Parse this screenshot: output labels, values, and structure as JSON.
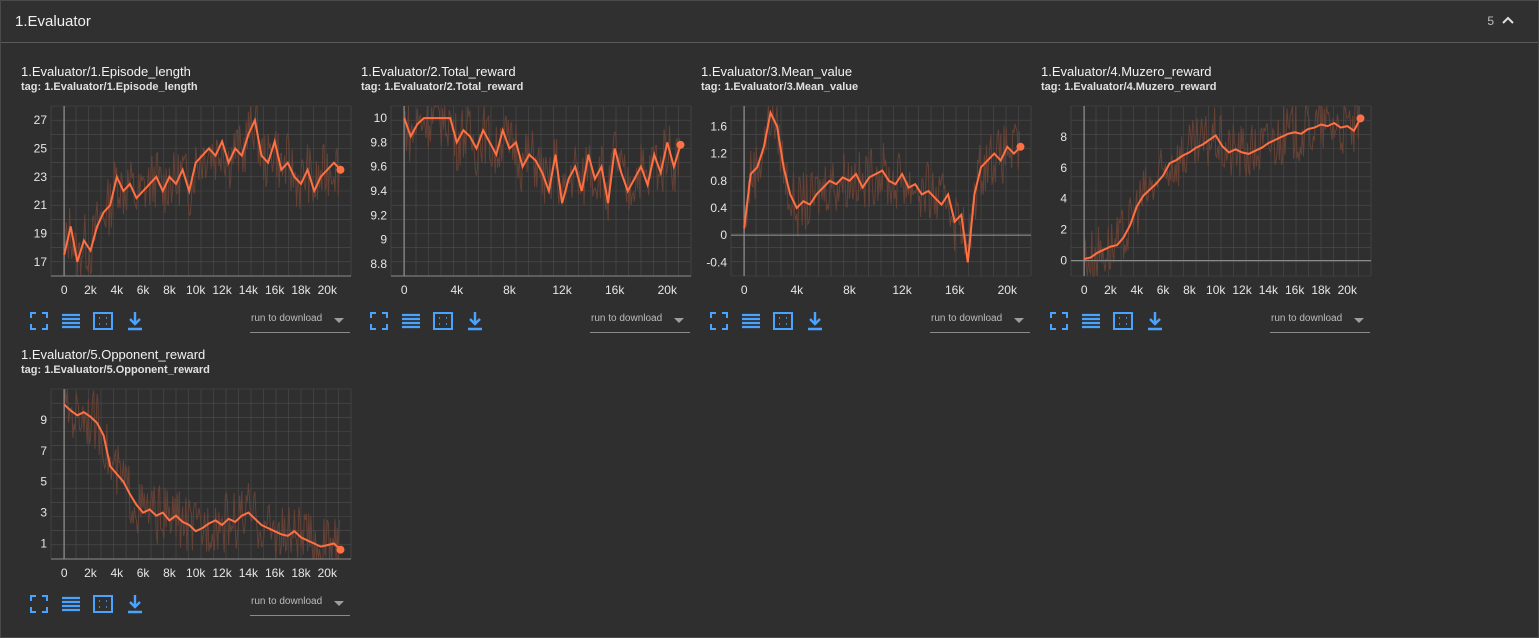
{
  "panel": {
    "title": "1.Evaluator",
    "count": "5",
    "collapse_icon": "chevron-up-icon"
  },
  "colors": {
    "background": "#2f2f2f",
    "grid": "#4d4d4d",
    "axis": "#8c8c8c",
    "line": "#ff7043",
    "raw": "#6e4436",
    "band": "#5c3a30",
    "icon": "#4aa3ff"
  },
  "toolbar": {
    "icons": [
      "fullscreen-icon",
      "toggle-log-scale-icon",
      "fit-domain-icon",
      "download-icon"
    ],
    "run_to_download": "run to download"
  },
  "cards": [
    {
      "title": "1.Evaluator/1.Episode_length",
      "tag": "tag: 1.Evaluator/1.Episode_length"
    },
    {
      "title": "1.Evaluator/2.Total_reward",
      "tag": "tag: 1.Evaluator/2.Total_reward"
    },
    {
      "title": "1.Evaluator/3.Mean_value",
      "tag": "tag: 1.Evaluator/3.Mean_value"
    },
    {
      "title": "1.Evaluator/4.Muzero_reward",
      "tag": "tag: 1.Evaluator/4.Muzero_reward"
    },
    {
      "title": "1.Evaluator/5.Opponent_reward",
      "tag": "tag: 1.Evaluator/5.Opponent_reward"
    }
  ],
  "chart_data": [
    {
      "type": "line",
      "series": [
        {
          "x": [
            0,
            500,
            1000,
            1500,
            2000,
            2500,
            3000,
            3500,
            4000,
            4500,
            5000,
            5500,
            6000,
            6500,
            7000,
            7500,
            8000,
            8500,
            9000,
            9500,
            10000,
            10500,
            11000,
            11500,
            12000,
            12500,
            13000,
            13500,
            14000,
            14500,
            15000,
            15500,
            16000,
            16500,
            17000,
            17500,
            18000,
            18500,
            19000,
            19500,
            20000,
            20500,
            21000
          ],
          "y": [
            17.5,
            19.5,
            17.0,
            18.5,
            17.8,
            19.5,
            20.5,
            21.0,
            23.0,
            22.0,
            22.5,
            21.5,
            22.0,
            22.5,
            23.0,
            22.0,
            23.0,
            22.5,
            23.5,
            22.0,
            24.0,
            24.5,
            25.0,
            24.5,
            25.5,
            24.0,
            25.0,
            24.5,
            26.0,
            27.0,
            24.5,
            24.0,
            25.5,
            23.5,
            24.0,
            23.0,
            22.5,
            23.5,
            22.0,
            23.0,
            23.5,
            24.0,
            23.5
          ]
        }
      ],
      "xticks": [
        "0",
        "2k",
        "4k",
        "6k",
        "8k",
        "10k",
        "12k",
        "14k",
        "16k",
        "18k",
        "20k"
      ],
      "yticks": [
        "17",
        "19",
        "21",
        "23",
        "25",
        "27"
      ],
      "xlim": [
        -1000,
        21800
      ],
      "ylim": [
        16,
        28
      ]
    },
    {
      "type": "line",
      "series": [
        {
          "x": [
            0,
            500,
            1000,
            1500,
            2000,
            2500,
            3000,
            3500,
            4000,
            4500,
            5000,
            5500,
            6000,
            6500,
            7000,
            7500,
            8000,
            8500,
            9000,
            9500,
            10000,
            10500,
            11000,
            11500,
            12000,
            12500,
            13000,
            13500,
            14000,
            14500,
            15000,
            15500,
            16000,
            16500,
            17000,
            17500,
            18000,
            18500,
            19000,
            19500,
            20000,
            20500,
            21000
          ],
          "y": [
            10.0,
            9.85,
            9.95,
            10.0,
            10.0,
            10.0,
            10.0,
            10.0,
            9.8,
            9.9,
            9.85,
            9.75,
            9.9,
            9.8,
            9.7,
            9.9,
            9.75,
            9.8,
            9.6,
            9.7,
            9.65,
            9.55,
            9.4,
            9.7,
            9.3,
            9.5,
            9.6,
            9.4,
            9.7,
            9.5,
            9.6,
            9.3,
            9.75,
            9.55,
            9.4,
            9.5,
            9.6,
            9.45,
            9.7,
            9.55,
            9.8,
            9.6,
            9.78
          ]
        }
      ],
      "xticks": [
        "0",
        "4k",
        "8k",
        "12k",
        "16k",
        "20k"
      ],
      "yticks": [
        "8.8",
        "9",
        "9.2",
        "9.4",
        "9.6",
        "9.8",
        "10"
      ],
      "xlim": [
        -1000,
        21800
      ],
      "ylim": [
        8.7,
        10.1
      ]
    },
    {
      "type": "line",
      "series": [
        {
          "x": [
            0,
            500,
            1000,
            1500,
            2000,
            2500,
            3000,
            3500,
            4000,
            4500,
            5000,
            5500,
            6000,
            6500,
            7000,
            7500,
            8000,
            8500,
            9000,
            9500,
            10000,
            10500,
            11000,
            11500,
            12000,
            12500,
            13000,
            13500,
            14000,
            14500,
            15000,
            15500,
            16000,
            16500,
            17000,
            17500,
            18000,
            18500,
            19000,
            19500,
            20000,
            20500,
            21000
          ],
          "y": [
            0.1,
            0.9,
            1.0,
            1.3,
            1.8,
            1.6,
            1.0,
            0.6,
            0.4,
            0.5,
            0.45,
            0.6,
            0.7,
            0.8,
            0.75,
            0.85,
            0.8,
            0.9,
            0.7,
            0.85,
            0.9,
            0.95,
            0.8,
            0.75,
            0.9,
            0.7,
            0.75,
            0.6,
            0.65,
            0.55,
            0.45,
            0.6,
            0.2,
            0.3,
            -0.4,
            0.6,
            1.0,
            1.1,
            1.2,
            1.1,
            1.3,
            1.2,
            1.3
          ]
        }
      ],
      "xticks": [
        "0",
        "4k",
        "8k",
        "12k",
        "16k",
        "20k"
      ],
      "yticks": [
        "-0.4",
        "0",
        "0.4",
        "0.8",
        "1.2",
        "1.6"
      ],
      "xlim": [
        -1000,
        21800
      ],
      "ylim": [
        -0.6,
        1.9
      ]
    },
    {
      "type": "line",
      "series": [
        {
          "x": [
            0,
            500,
            1000,
            1500,
            2000,
            2500,
            3000,
            3500,
            4000,
            4500,
            5000,
            5500,
            6000,
            6500,
            7000,
            7500,
            8000,
            8500,
            9000,
            9500,
            10000,
            10500,
            11000,
            11500,
            12000,
            12500,
            13000,
            13500,
            14000,
            14500,
            15000,
            15500,
            16000,
            16500,
            17000,
            17500,
            18000,
            18500,
            19000,
            19500,
            20000,
            20500,
            21000
          ],
          "y": [
            0.1,
            0.2,
            0.5,
            0.7,
            0.9,
            1.0,
            1.5,
            2.3,
            3.5,
            4.2,
            4.6,
            5.0,
            5.5,
            6.3,
            6.5,
            6.8,
            7.0,
            7.3,
            7.5,
            7.8,
            8.1,
            7.4,
            7.0,
            7.2,
            7.0,
            6.9,
            7.1,
            7.3,
            7.6,
            7.8,
            8.0,
            8.2,
            8.3,
            8.2,
            8.5,
            8.6,
            8.8,
            8.7,
            8.9,
            8.6,
            8.7,
            8.4,
            9.2
          ]
        }
      ],
      "xticks": [
        "0",
        "2k",
        "4k",
        "6k",
        "8k",
        "10k",
        "12k",
        "14k",
        "16k",
        "18k",
        "20k"
      ],
      "yticks": [
        "0",
        "2",
        "4",
        "6",
        "8"
      ],
      "xlim": [
        -1000,
        21800
      ],
      "ylim": [
        -1,
        10
      ]
    },
    {
      "type": "line",
      "series": [
        {
          "x": [
            0,
            500,
            1000,
            1500,
            2000,
            2500,
            3000,
            3500,
            4000,
            4500,
            5000,
            5500,
            6000,
            6500,
            7000,
            7500,
            8000,
            8500,
            9000,
            9500,
            10000,
            10500,
            11000,
            11500,
            12000,
            12500,
            13000,
            13500,
            14000,
            14500,
            15000,
            15500,
            16000,
            16500,
            17000,
            17500,
            18000,
            18500,
            19000,
            19500,
            20000,
            20500,
            21000
          ],
          "y": [
            10.0,
            9.6,
            9.3,
            9.5,
            9.2,
            8.8,
            8.0,
            6.0,
            5.5,
            5.0,
            4.2,
            3.5,
            3.0,
            3.2,
            2.8,
            3.0,
            2.5,
            2.8,
            2.4,
            2.2,
            1.8,
            2.0,
            2.3,
            2.5,
            2.2,
            2.6,
            2.4,
            2.8,
            3.0,
            2.6,
            2.2,
            2.0,
            1.8,
            1.6,
            1.5,
            1.8,
            1.4,
            1.2,
            1.0,
            0.8,
            0.9,
            1.0,
            0.6
          ]
        }
      ],
      "xticks": [
        "0",
        "2k",
        "4k",
        "6k",
        "8k",
        "10k",
        "12k",
        "14k",
        "16k",
        "18k",
        "20k"
      ],
      "yticks": [
        "1",
        "3",
        "5",
        "7",
        "9"
      ],
      "xlim": [
        -1000,
        21800
      ],
      "ylim": [
        0,
        11
      ]
    }
  ]
}
